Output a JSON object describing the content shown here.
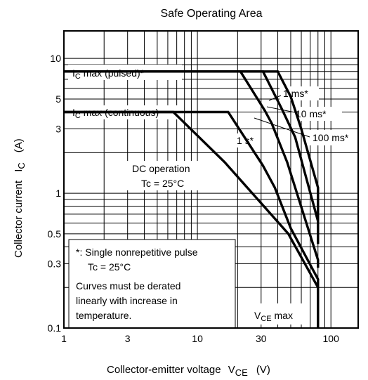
{
  "chart_data": {
    "type": "line",
    "title": "Safe Operating Area",
    "xlabel": {
      "text": "Collector-emitter voltage",
      "symbol": "V",
      "subscript": "CE",
      "unit": "(V)"
    },
    "ylabel": {
      "text": "Collector current",
      "symbol": "I",
      "subscript": "C",
      "unit": "(A)"
    },
    "xscale": "log",
    "yscale": "log",
    "xlim": [
      1,
      160
    ],
    "ylim": [
      0.1,
      16
    ],
    "x_ticks": [
      1,
      3,
      10,
      30,
      100
    ],
    "x_tick_labels": [
      "1",
      "3",
      "10",
      "30",
      "100"
    ],
    "y_ticks": [
      0.1,
      0.3,
      0.5,
      1,
      3,
      5,
      10
    ],
    "y_tick_labels": [
      "0.1",
      "0.3",
      "0.5",
      "1",
      "3",
      "5",
      "10"
    ],
    "x_grid": [
      2,
      3,
      4,
      5,
      6,
      7,
      8,
      9,
      10,
      20,
      30,
      40,
      50,
      60,
      70,
      80,
      90,
      100
    ],
    "y_grid": [
      0.2,
      0.3,
      0.4,
      0.5,
      0.6,
      0.7,
      0.8,
      0.9,
      1,
      2,
      3,
      4,
      5,
      6,
      7,
      8,
      9,
      10
    ],
    "grid": true,
    "series": [
      {
        "name": "1 ms*",
        "x": [
          1,
          40,
          50,
          60,
          80,
          80
        ],
        "y": [
          8,
          8,
          5.2,
          3,
          1.1,
          0.55
        ]
      },
      {
        "name": "10 ms*",
        "x": [
          1,
          31,
          43,
          54,
          80,
          80
        ],
        "y": [
          8,
          8,
          4.2,
          2.6,
          0.62,
          0.42
        ]
      },
      {
        "name": "100 ms*",
        "x": [
          1,
          21,
          32,
          36,
          47,
          80,
          80
        ],
        "y": [
          8,
          8,
          4.1,
          3.3,
          1.7,
          0.32,
          0.28
        ]
      },
      {
        "name": "1 s*",
        "x": [
          1,
          17,
          31,
          38,
          50,
          80,
          80
        ],
        "y": [
          4,
          4,
          1.6,
          1.1,
          0.55,
          0.23,
          0.18
        ]
      },
      {
        "name": "DC operation",
        "x": [
          1,
          6.6,
          16,
          48,
          80,
          80
        ],
        "y": [
          4,
          4,
          1.7,
          0.5,
          0.2,
          0.1
        ]
      }
    ],
    "annotations": {
      "ic_pulsed": {
        "text": "I",
        "sub": "C",
        "rest": " max (pulsed)*"
      },
      "ic_cont": {
        "text": "I",
        "sub": "C",
        "rest": " max (continuous)"
      },
      "ms1": "1 ms*",
      "ms10": "10 ms*",
      "ms100": "100 ms*",
      "s1": "1 s*",
      "dc_line1": "DC operation",
      "dc_line2": "Tc = 25°C",
      "vce_max": {
        "text": "V",
        "sub": "CE",
        "rest": " max"
      },
      "note_line1": "*:  Single nonrepetitive pulse",
      "note_line2": "Tc = 25°C",
      "note_line3": "Curves must be derated",
      "note_line4": "linearly with increase in",
      "note_line5": "temperature."
    }
  }
}
